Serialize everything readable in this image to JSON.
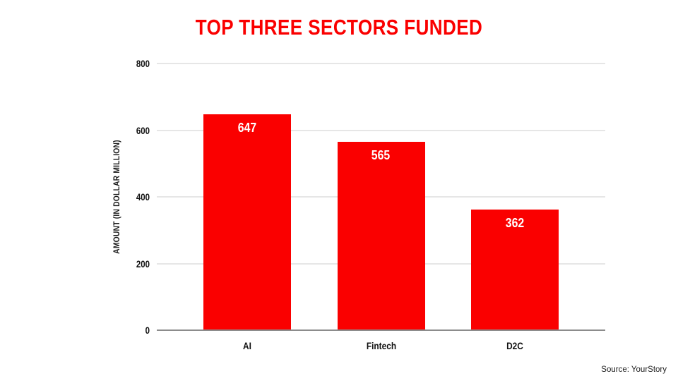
{
  "slide": {
    "title": "TOP THREE SECTORS FUNDED",
    "source": "Source: YourStory"
  },
  "chart_data": {
    "type": "bar",
    "title": "TOP THREE SECTORS FUNDED",
    "categories": [
      "AI",
      "Fintech",
      "D2C"
    ],
    "values": [
      647,
      565,
      362
    ],
    "xlabel": "",
    "ylabel": "AMOUNT (IN DOLLAR MILLION)",
    "ylim": [
      0,
      800
    ],
    "yticks": [
      0,
      200,
      400,
      600,
      800
    ],
    "grid": true,
    "legend": false,
    "bar_color": "#fa0000",
    "value_label_color": "#ffffff",
    "title_color": "#fa0000"
  },
  "colors": {
    "background": "#ffffff",
    "gridline": "#e6e6e6",
    "baseline": "#8c8c8c",
    "text": "#111111"
  }
}
